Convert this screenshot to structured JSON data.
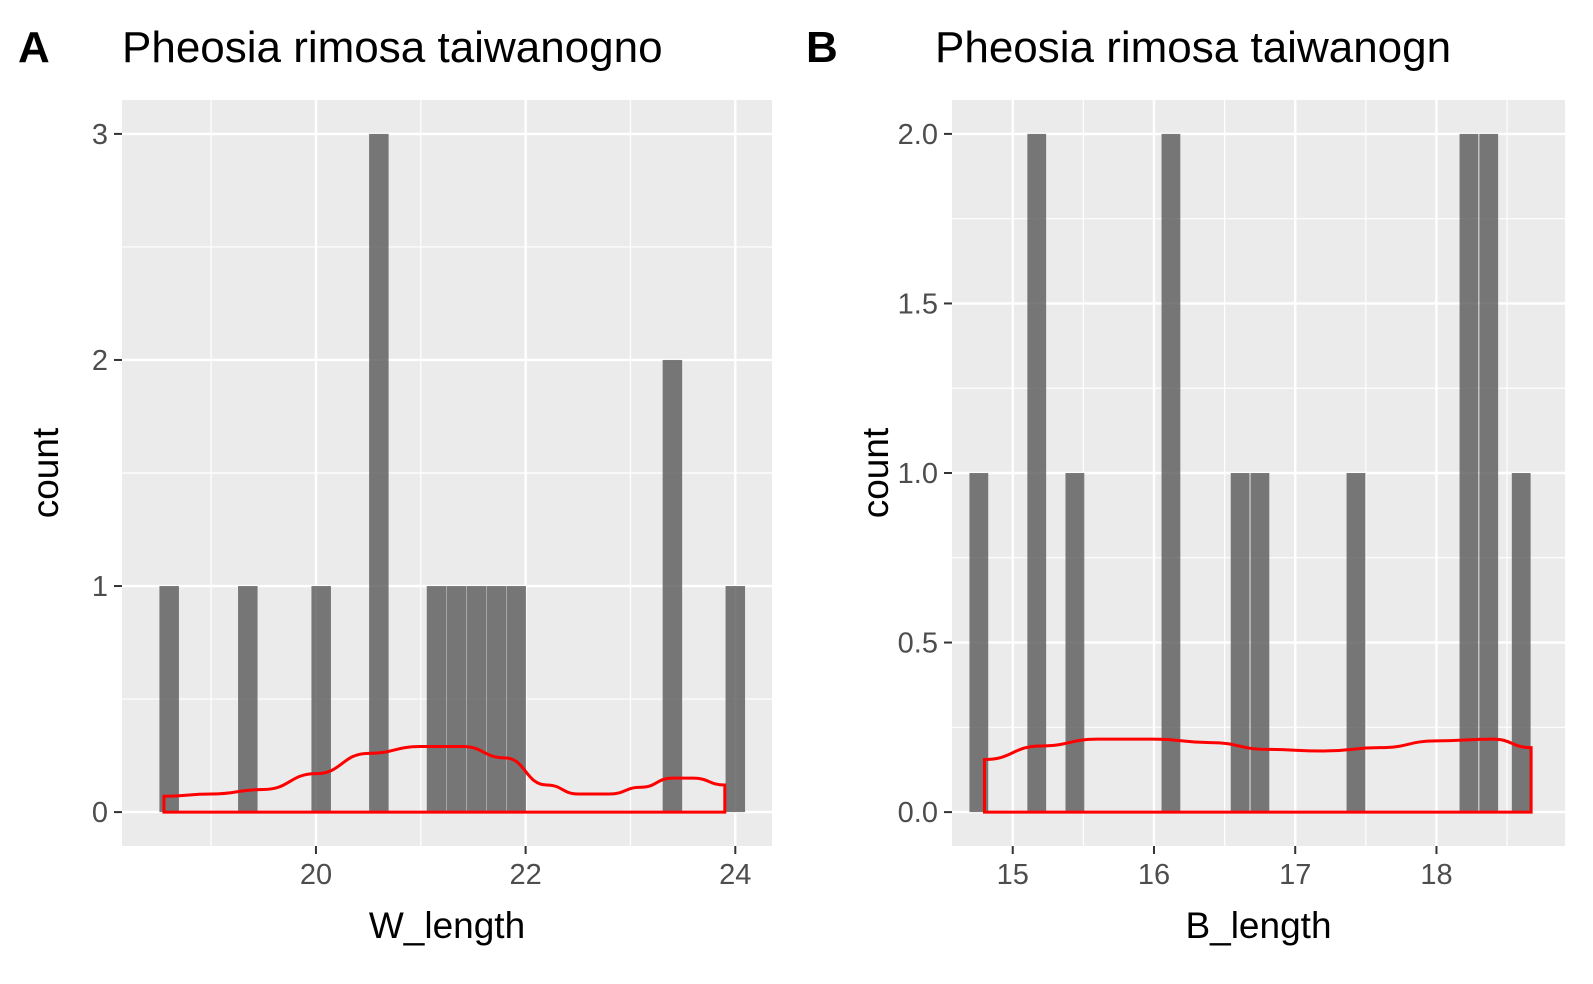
{
  "chart_data": [
    {
      "panel": "A",
      "type": "bar",
      "title": "Pheosia rimosa taiwanogno",
      "xlabel": "W_length",
      "ylabel": "count",
      "xlim": [
        18.15,
        24.35
      ],
      "ylim": [
        -0.15,
        3.15
      ],
      "xticks": [
        20,
        22,
        24
      ],
      "xminor": [
        19,
        21,
        23
      ],
      "yticks": [
        0,
        1,
        2,
        3
      ],
      "yminor": [
        0.5,
        1.5,
        2.5
      ],
      "bar_width": 0.186,
      "bars": [
        {
          "x": 18.6,
          "count": 1
        },
        {
          "x": 19.35,
          "count": 1
        },
        {
          "x": 20.05,
          "count": 1
        },
        {
          "x": 20.6,
          "count": 3
        },
        {
          "x": 21.15,
          "count": 1
        },
        {
          "x": 21.34,
          "count": 1
        },
        {
          "x": 21.53,
          "count": 1
        },
        {
          "x": 21.72,
          "count": 1
        },
        {
          "x": 21.91,
          "count": 1
        },
        {
          "x": 23.4,
          "count": 2
        },
        {
          "x": 24.0,
          "count": 1
        }
      ],
      "density": {
        "color": "#ff0000",
        "x": [
          18.55,
          19.0,
          19.5,
          20.0,
          20.5,
          21.0,
          21.4,
          21.8,
          22.2,
          22.5,
          22.8,
          23.1,
          23.4,
          23.6,
          23.9
        ],
        "y": [
          0.07,
          0.08,
          0.1,
          0.17,
          0.26,
          0.29,
          0.29,
          0.24,
          0.12,
          0.08,
          0.08,
          0.11,
          0.15,
          0.15,
          0.12
        ]
      },
      "colors": {
        "panel_bg": "#ebebeb",
        "grid": "#ffffff",
        "bar": "#595959"
      }
    },
    {
      "panel": "B",
      "type": "bar",
      "title": "Pheosia rimosa taiwanogn",
      "xlabel": "B_length",
      "ylabel": "count",
      "xlim": [
        14.57,
        18.91
      ],
      "ylim": [
        -0.1,
        2.1
      ],
      "xticks": [
        15,
        16,
        17,
        18
      ],
      "xminor": [
        14.5,
        15.5,
        16.5,
        17.5,
        18.5
      ],
      "yticks": [
        "0.0",
        "0.5",
        "1.0",
        "1.5",
        "2.0"
      ],
      "yminor": [
        0.25,
        0.75,
        1.25,
        1.75
      ],
      "bar_width": 0.133,
      "bars": [
        {
          "x": 14.76,
          "count": 1
        },
        {
          "x": 15.17,
          "count": 2
        },
        {
          "x": 15.44,
          "count": 1
        },
        {
          "x": 16.12,
          "count": 2
        },
        {
          "x": 16.61,
          "count": 1
        },
        {
          "x": 16.75,
          "count": 1
        },
        {
          "x": 17.43,
          "count": 1
        },
        {
          "x": 18.23,
          "count": 2
        },
        {
          "x": 18.37,
          "count": 2
        },
        {
          "x": 18.6,
          "count": 1
        }
      ],
      "density": {
        "color": "#ff0000",
        "x": [
          14.8,
          15.2,
          15.6,
          16.0,
          16.4,
          16.8,
          17.2,
          17.6,
          18.0,
          18.4,
          18.67
        ],
        "y": [
          0.155,
          0.195,
          0.215,
          0.215,
          0.205,
          0.185,
          0.18,
          0.19,
          0.21,
          0.215,
          0.19
        ]
      },
      "colors": {
        "panel_bg": "#ebebeb",
        "grid": "#ffffff",
        "bar": "#595959"
      }
    }
  ]
}
